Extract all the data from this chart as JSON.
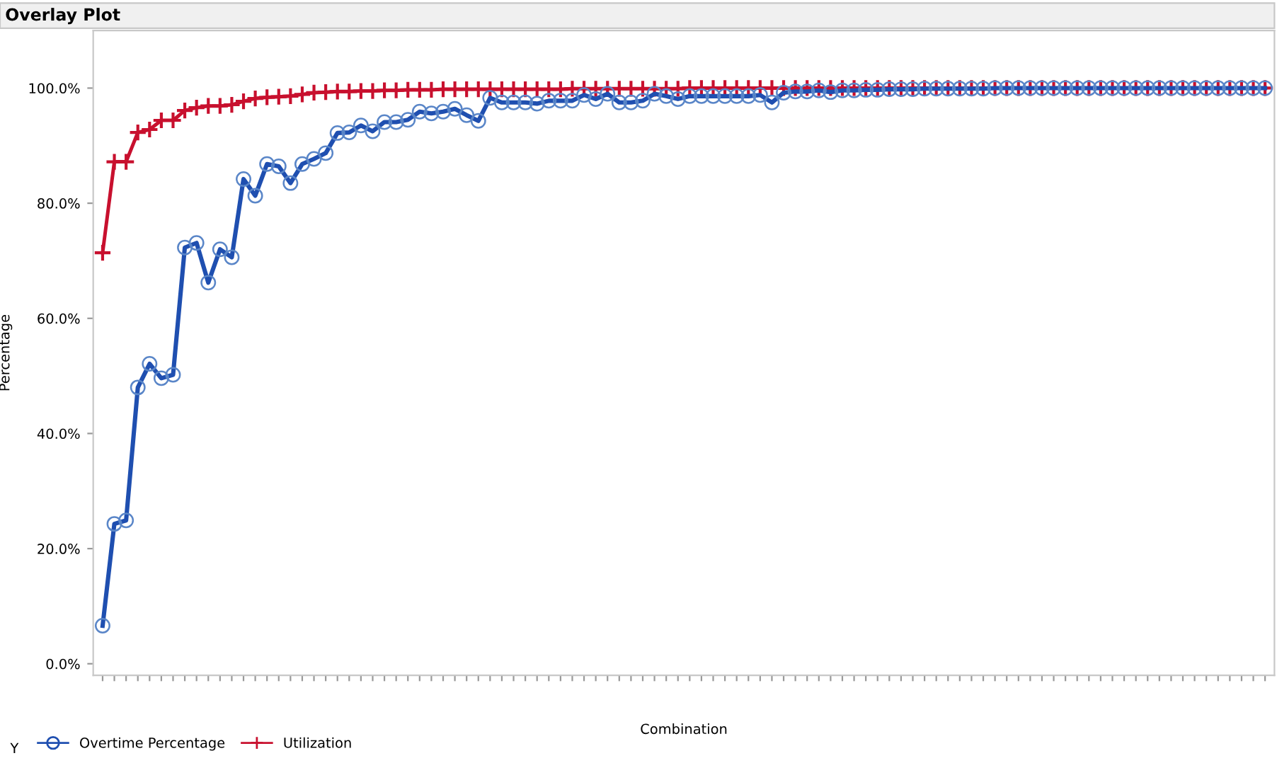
{
  "chart_data": {
    "type": "line",
    "title": "Overlay Plot",
    "xlabel": "Combination",
    "ylabel": "Percentage",
    "legend_title": "Y",
    "legend": "bottom left",
    "grid": false,
    "categories": [
      null,
      null,
      null,
      null,
      null,
      null,
      null,
      null,
      null,
      null,
      null,
      null,
      null,
      null,
      null,
      null,
      null,
      null,
      null,
      null,
      null,
      null,
      null,
      null,
      null,
      null,
      null,
      null,
      null,
      null,
      null,
      null,
      null,
      null,
      null,
      null,
      null,
      null,
      null,
      null,
      null,
      null,
      null,
      null,
      null,
      null,
      null,
      null,
      null,
      null,
      null,
      null,
      null,
      null,
      null,
      null,
      null,
      null,
      null,
      null,
      null,
      null,
      null,
      null,
      null,
      null,
      null,
      null,
      null,
      null,
      null,
      null,
      null,
      null,
      null,
      null,
      null,
      null,
      null,
      null,
      null,
      null,
      null,
      null,
      null,
      null,
      null,
      null,
      null,
      null,
      null,
      null,
      null,
      null,
      null,
      null,
      null,
      null,
      null,
      null
    ],
    "ylim": [
      -2,
      110
    ],
    "yticks": [
      {
        "value": 0,
        "label": "0.0%"
      },
      {
        "value": 20,
        "label": "20.0%"
      },
      {
        "value": 40,
        "label": "40.0%"
      },
      {
        "value": 60,
        "label": "60.0%"
      },
      {
        "value": 80,
        "label": "80.0%"
      },
      {
        "value": 100,
        "label": "100.0%"
      }
    ],
    "series": [
      {
        "name": "Overtime Percentage",
        "color": "#1f4fb0",
        "marker": "circle",
        "values": [
          6.6,
          24.3,
          24.9,
          48.0,
          52.1,
          49.6,
          50.2,
          72.3,
          73.1,
          66.2,
          72.0,
          70.6,
          84.2,
          81.3,
          86.8,
          86.4,
          83.5,
          86.8,
          87.7,
          88.7,
          92.2,
          92.3,
          93.5,
          92.5,
          94.1,
          94.1,
          94.5,
          95.9,
          95.6,
          95.9,
          96.4,
          95.3,
          94.3,
          98.3,
          97.5,
          97.5,
          97.5,
          97.3,
          97.8,
          97.8,
          97.8,
          98.8,
          98.1,
          99.0,
          97.5,
          97.5,
          97.8,
          99.0,
          98.6,
          98.1,
          98.6,
          98.6,
          98.6,
          98.6,
          98.6,
          98.6,
          98.8,
          97.5,
          99.2,
          99.4,
          99.4,
          99.6,
          99.3,
          99.6,
          99.6,
          99.7,
          99.7,
          99.8,
          99.8,
          99.8,
          99.9,
          99.9,
          99.9,
          99.9,
          99.9,
          99.9,
          100,
          100,
          100,
          100,
          100,
          100,
          100,
          100,
          100,
          100,
          100,
          100,
          100,
          100,
          100,
          100,
          100,
          100,
          100,
          100,
          100,
          100,
          100,
          100
        ]
      },
      {
        "name": "Utilization",
        "color": "#c8102e",
        "marker": "cross",
        "values": [
          71.4,
          87.2,
          87.2,
          92.3,
          92.8,
          94.4,
          94.4,
          96.1,
          96.6,
          96.9,
          96.9,
          97.1,
          97.7,
          98.2,
          98.4,
          98.5,
          98.6,
          98.9,
          99.2,
          99.3,
          99.4,
          99.4,
          99.5,
          99.5,
          99.6,
          99.6,
          99.7,
          99.7,
          99.7,
          99.8,
          99.8,
          99.8,
          99.8,
          99.8,
          99.8,
          99.8,
          99.8,
          99.8,
          99.8,
          99.8,
          99.9,
          99.9,
          99.9,
          99.9,
          99.9,
          99.9,
          99.9,
          99.9,
          99.9,
          99.9,
          100,
          100,
          100,
          100,
          100,
          100,
          100,
          100,
          100,
          100,
          100,
          100,
          100,
          100,
          100,
          100,
          100,
          100,
          100,
          100,
          100,
          100,
          100,
          100,
          100,
          100,
          100,
          100,
          100,
          100,
          100,
          100,
          100,
          100,
          100,
          100,
          100,
          100,
          100,
          100,
          100,
          100,
          100,
          100,
          100,
          100,
          100,
          100,
          100,
          100
        ]
      }
    ]
  }
}
